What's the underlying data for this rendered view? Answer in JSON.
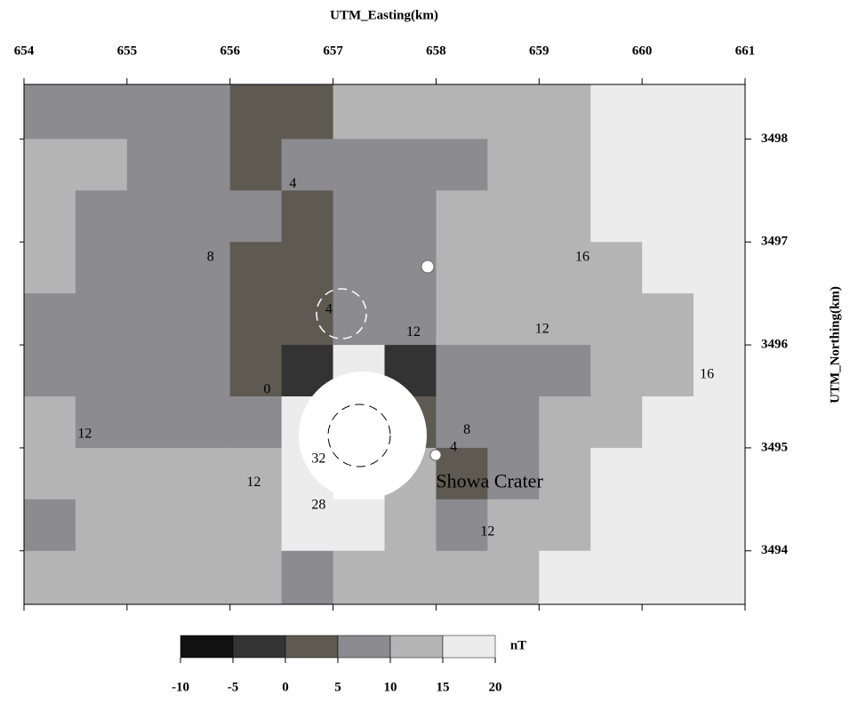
{
  "chart_data": {
    "type": "contour",
    "x_title": "UTM_Easting(km)",
    "y_title": "UTM_Northing(km)",
    "xlim": [
      654,
      661
    ],
    "xticks": [
      654,
      655,
      656,
      657,
      658,
      659,
      660,
      661
    ],
    "ylim": [
      3493.48,
      3498.53
    ],
    "yticks": [
      3494,
      3495,
      3496,
      3497,
      3498
    ],
    "x": [
      654.25,
      654.75,
      655.25,
      655.75,
      656.25,
      656.75,
      657.25,
      657.75,
      658.25,
      658.75,
      659.25,
      659.75,
      660.25,
      660.75
    ],
    "y": [
      3498.25,
      3497.75,
      3497.25,
      3496.75,
      3496.25,
      3495.75,
      3495.25,
      3494.75,
      3494.25,
      3493.75
    ],
    "z": [
      [
        8,
        8,
        9,
        7,
        4,
        4,
        11,
        11,
        11,
        12,
        14,
        17,
        17,
        17
      ],
      [
        11,
        11,
        8,
        7,
        3,
        5,
        9,
        8,
        7,
        11,
        13,
        16,
        17,
        17
      ],
      [
        10,
        8,
        7,
        7,
        6,
        3,
        7,
        9,
        11,
        12,
        13,
        15,
        16,
        17
      ],
      [
        10,
        8,
        7,
        6,
        3,
        3,
        5,
        9,
        11,
        12,
        12,
        13,
        15,
        17
      ],
      [
        8,
        9,
        8,
        6,
        3,
        4,
        5,
        9,
        11,
        12,
        12,
        13,
        14,
        16
      ],
      [
        7,
        9,
        8,
        7,
        3,
        -4,
        15,
        -2,
        8,
        8,
        7,
        11,
        14,
        16
      ],
      [
        11,
        9,
        8,
        7,
        6,
        20,
        null,
        2,
        7,
        9,
        10,
        13,
        16,
        17
      ],
      [
        11,
        11,
        10,
        11,
        13,
        30,
        null,
        11,
        3,
        9,
        12,
        15,
        16,
        17
      ],
      [
        9,
        10,
        11,
        11,
        11,
        18,
        16,
        12,
        9,
        12,
        14,
        16,
        17,
        17
      ],
      [
        10,
        10,
        10,
        11,
        11,
        8,
        14,
        13,
        13,
        14,
        15,
        16,
        17,
        17
      ]
    ],
    "levels": [
      -10,
      -5,
      0,
      5,
      10,
      15,
      20
    ],
    "colors": [
      "#111111",
      "#333333",
      "#5e5a52",
      "#8b8b90",
      "#b4b4b4",
      "#ececec"
    ],
    "colorbar_label": "nT",
    "contour_labels": [
      {
        "value": 4,
        "x": 656.61,
        "y": 3497.56
      },
      {
        "value": 8,
        "x": 655.81,
        "y": 3496.85
      },
      {
        "value": 4,
        "x": 656.96,
        "y": 3496.34
      },
      {
        "value": 12,
        "x": 657.78,
        "y": 3496.12
      },
      {
        "value": 12,
        "x": 659.03,
        "y": 3496.15
      },
      {
        "value": 16,
        "x": 659.42,
        "y": 3496.85
      },
      {
        "value": 16,
        "x": 660.63,
        "y": 3495.71
      },
      {
        "value": 0,
        "x": 656.36,
        "y": 3495.56
      },
      {
        "value": 12,
        "x": 654.59,
        "y": 3495.13
      },
      {
        "value": 12,
        "x": 656.23,
        "y": 3494.66
      },
      {
        "value": 32,
        "x": 656.86,
        "y": 3494.89
      },
      {
        "value": 28,
        "x": 656.86,
        "y": 3494.44
      },
      {
        "value": 8,
        "x": 658.3,
        "y": 3495.17
      },
      {
        "value": 4,
        "x": 658.17,
        "y": 3495.0
      },
      {
        "value": 12,
        "x": 658.5,
        "y": 3494.18
      }
    ],
    "annotation": {
      "text": "Showa Crater",
      "x": 658.0,
      "y": 3494.66
    }
  }
}
